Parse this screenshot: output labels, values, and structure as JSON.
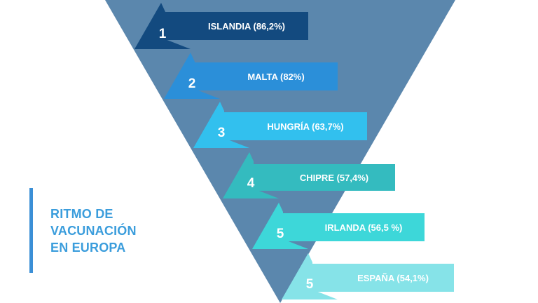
{
  "title": {
    "lines": [
      "RITMO DE",
      "VACUNACIÓN",
      "EN EUROPA"
    ],
    "color": "#3b9ddc",
    "bar_color": "#3b8fd6"
  },
  "funnel_color": "#5b87ad",
  "ranking": [
    {
      "rank": "1",
      "label": "ISLANDIA (86,2%)",
      "value": 86.2,
      "color": "#134a7f"
    },
    {
      "rank": "2",
      "label": "MALTA (82%)",
      "value": 82.0,
      "color": "#2b8fd9"
    },
    {
      "rank": "3",
      "label": "HUNGRÍA (63,7%)",
      "value": 63.7,
      "color": "#32c0ee"
    },
    {
      "rank": "4",
      "label": "CHIPRE (57,4%)",
      "value": 57.4,
      "color": "#34bbbf"
    },
    {
      "rank": "5",
      "label": "IRLANDA (56,5 %)",
      "value": 56.5,
      "color": "#3dd7d9"
    },
    {
      "rank": "5",
      "label": "ESPAÑA (54,1%)",
      "value": 54.1,
      "color": "#86e3e8"
    }
  ]
}
